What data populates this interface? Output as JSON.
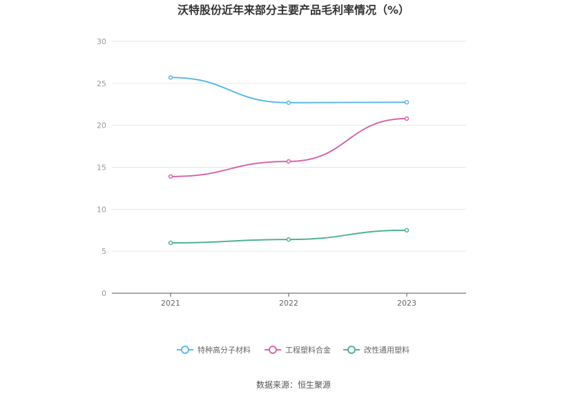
{
  "title": "沃特股份近年来部分主要产品毛利率情况（%）",
  "source": "数据来源：恒生聚源",
  "chart_data": {
    "type": "line",
    "title": "沃特股份近年来部分主要产品毛利率情况（%）",
    "categories": [
      "2021",
      "2022",
      "2023"
    ],
    "series": [
      {
        "name": "特种高分子材料",
        "values": [
          25.7,
          22.7,
          22.75
        ],
        "color": "#5bb8ec"
      },
      {
        "name": "工程塑料合金",
        "values": [
          13.9,
          15.7,
          20.8
        ],
        "color": "#d466a8"
      },
      {
        "name": "改性通用塑料",
        "values": [
          6.0,
          6.4,
          7.5
        ],
        "color": "#4cb38f"
      }
    ],
    "ylim": [
      0,
      30
    ],
    "yticks": [
      "0",
      "5",
      "10",
      "15",
      "20",
      "25",
      "30"
    ],
    "grid": true,
    "legend_position": "bottom"
  }
}
